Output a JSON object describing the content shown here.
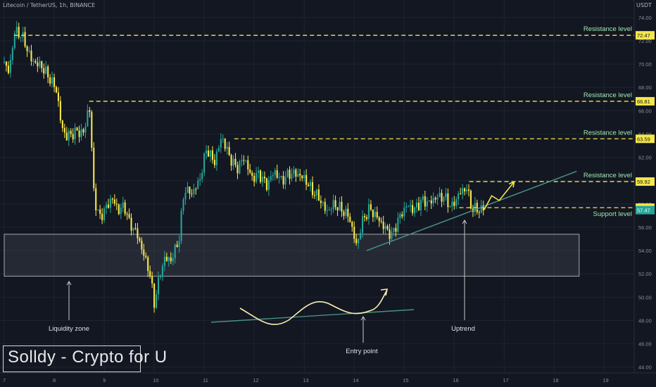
{
  "header": {
    "title": "Litecoin / TetherUS, 1h, BINANCE",
    "currency": "USDT"
  },
  "watermark": "Solldy - Crypto for U",
  "chart_data": {
    "type": "candlestick",
    "instrument": "Litecoin / TetherUS",
    "timeframe": "1h",
    "exchange": "BINANCE",
    "ylim": [
      43.5,
      75.5
    ],
    "y_ticks": [
      "44.00",
      "46.00",
      "48.00",
      "50.00",
      "52.00",
      "54.00",
      "56.00",
      "58.00",
      "60.00",
      "62.00",
      "64.00",
      "66.00",
      "68.00",
      "70.00",
      "72.00",
      "74.00"
    ],
    "x_ticks": [
      "7",
      "8",
      "9",
      "10",
      "11",
      "12",
      "13",
      "14",
      "15",
      "16",
      "17",
      "18",
      "19"
    ],
    "x_range_days": [
      7,
      19.6
    ],
    "close_path": [
      [
        7.0,
        70.2
      ],
      [
        7.1,
        69.2
      ],
      [
        7.2,
        72.8
      ],
      [
        7.35,
        72.5
      ],
      [
        7.55,
        70.3
      ],
      [
        7.75,
        69.8
      ],
      [
        7.95,
        68.5
      ],
      [
        8.05,
        67.7
      ],
      [
        8.15,
        64.5
      ],
      [
        8.25,
        63.8
      ],
      [
        8.45,
        64.2
      ],
      [
        8.6,
        64.1
      ],
      [
        8.7,
        66.8
      ],
      [
        8.8,
        58.5
      ],
      [
        8.9,
        56.8
      ],
      [
        9.0,
        57.4
      ],
      [
        9.15,
        58.5
      ],
      [
        9.3,
        57.4
      ],
      [
        9.4,
        57.9
      ],
      [
        9.5,
        56.4
      ],
      [
        9.65,
        55.5
      ],
      [
        9.8,
        53.5
      ],
      [
        9.9,
        52.3
      ],
      [
        10.0,
        49.5
      ],
      [
        10.1,
        51.6
      ],
      [
        10.2,
        53.3
      ],
      [
        10.35,
        53.2
      ],
      [
        10.5,
        55.1
      ],
      [
        10.6,
        59.3
      ],
      [
        10.75,
        58.9
      ],
      [
        10.9,
        59.9
      ],
      [
        11.05,
        62.8
      ],
      [
        11.2,
        61.5
      ],
      [
        11.35,
        63.8
      ],
      [
        11.5,
        62.1
      ],
      [
        11.65,
        61.0
      ],
      [
        11.8,
        62.0
      ],
      [
        11.95,
        60.2
      ],
      [
        12.1,
        60.6
      ],
      [
        12.25,
        59.6
      ],
      [
        12.4,
        60.8
      ],
      [
        12.55,
        60.0
      ],
      [
        12.7,
        60.6
      ],
      [
        12.85,
        60.6
      ],
      [
        13.0,
        60.2
      ],
      [
        13.15,
        59.2
      ],
      [
        13.3,
        58.5
      ],
      [
        13.45,
        57.3
      ],
      [
        13.6,
        58.0
      ],
      [
        13.75,
        57.5
      ],
      [
        13.9,
        56.9
      ],
      [
        14.05,
        54.3
      ],
      [
        14.15,
        56.4
      ],
      [
        14.3,
        57.6
      ],
      [
        14.45,
        56.9
      ],
      [
        14.6,
        56.0
      ],
      [
        14.75,
        55.3
      ],
      [
        14.9,
        56.8
      ],
      [
        15.05,
        57.9
      ],
      [
        15.2,
        57.5
      ],
      [
        15.35,
        58.3
      ],
      [
        15.5,
        58.1
      ],
      [
        15.65,
        58.6
      ],
      [
        15.8,
        58.6
      ],
      [
        15.95,
        57.7
      ],
      [
        16.1,
        58.9
      ],
      [
        16.25,
        59.4
      ],
      [
        16.35,
        57.6
      ],
      [
        16.5,
        57.5
      ],
      [
        16.6,
        57.6
      ]
    ],
    "levels": [
      {
        "label": "Resistance level",
        "price": "72.47"
      },
      {
        "label": "Resistance level",
        "price": "66.81"
      },
      {
        "label": "Resistance level",
        "price": "63.59"
      },
      {
        "label": "Resistance level",
        "price": "59.92"
      },
      {
        "label": "Support level",
        "price": "57.68"
      }
    ],
    "last_price": "57.47",
    "zone": {
      "label": "Liquidity zone",
      "from_day": 7.0,
      "to_day": 18.5,
      "low": 51.8,
      "high": 55.4
    },
    "uptrend_line": {
      "start": [
        14.25,
        54.0
      ],
      "end": [
        18.45,
        60.8
      ]
    },
    "projection": [
      [
        16.6,
        57.5
      ],
      [
        16.75,
        58.7
      ],
      [
        16.9,
        58.3
      ],
      [
        17.2,
        59.9
      ]
    ],
    "annotations": [
      {
        "text": "Liquidity zone",
        "x_day": 8.2,
        "y": 47.8
      },
      {
        "text": "Entry point",
        "x_day": 14.0,
        "y": 45.8
      },
      {
        "text": "Uptrend",
        "x_day": 16.0,
        "y": 47.8
      }
    ],
    "colors": {
      "background": "#131722",
      "grid": "#1f2330",
      "up": "#26a69a",
      "down": "#fbe94a",
      "level": "#f5e64a",
      "trend": "#4a8f83",
      "label": "#9fe7b1",
      "axis_text": "#8b8e97"
    },
    "grid": true
  }
}
